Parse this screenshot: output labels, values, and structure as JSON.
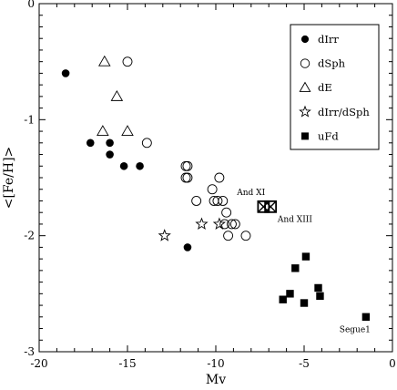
{
  "chart_data": {
    "type": "scatter",
    "xlabel": "Mv",
    "ylabel": "<[Fe/H]>",
    "xlim": [
      -20,
      0
    ],
    "ylim": [
      -3,
      0
    ],
    "xticks": [
      -20,
      -15,
      -10,
      -5,
      0
    ],
    "yticks": [
      0,
      -1,
      -2,
      -3
    ],
    "legend_position": "top-right",
    "series": [
      {
        "name": "dIrr",
        "marker": "filled-circle",
        "points": [
          [
            -18.5,
            -0.6
          ],
          [
            -17.1,
            -1.2
          ],
          [
            -16.0,
            -1.2
          ],
          [
            -16.0,
            -1.3
          ],
          [
            -15.2,
            -1.4
          ],
          [
            -14.3,
            -1.4
          ],
          [
            -11.6,
            -2.1
          ]
        ]
      },
      {
        "name": "dSph",
        "marker": "open-circle",
        "points": [
          [
            -15.0,
            -0.5
          ],
          [
            -13.9,
            -1.2
          ],
          [
            -11.7,
            -1.4
          ],
          [
            -11.6,
            -1.4
          ],
          [
            -11.7,
            -1.5
          ],
          [
            -11.6,
            -1.5
          ],
          [
            -11.1,
            -1.7
          ],
          [
            -10.2,
            -1.6
          ],
          [
            -10.1,
            -1.7
          ],
          [
            -9.9,
            -1.7
          ],
          [
            -9.8,
            -1.5
          ],
          [
            -9.6,
            -1.7
          ],
          [
            -9.4,
            -1.8
          ],
          [
            -9.5,
            -1.9
          ],
          [
            -9.3,
            -2.0
          ],
          [
            -9.1,
            -1.9
          ],
          [
            -8.9,
            -1.9
          ],
          [
            -8.3,
            -2.0
          ]
        ]
      },
      {
        "name": "dE",
        "marker": "open-triangle",
        "points": [
          [
            -16.3,
            -0.5
          ],
          [
            -15.6,
            -0.8
          ],
          [
            -16.4,
            -1.1
          ],
          [
            -15.0,
            -1.1
          ]
        ]
      },
      {
        "name": "dIrr/dSph",
        "marker": "open-star",
        "points": [
          [
            -12.9,
            -2.0
          ],
          [
            -10.8,
            -1.9
          ],
          [
            -9.8,
            -1.9
          ]
        ]
      },
      {
        "name": "uFd",
        "marker": "filled-square",
        "points": [
          [
            -6.2,
            -2.55
          ],
          [
            -5.8,
            -2.5
          ],
          [
            -5.5,
            -2.28
          ],
          [
            -5.0,
            -2.58
          ],
          [
            -4.9,
            -2.18
          ],
          [
            -4.2,
            -2.45
          ],
          [
            -4.1,
            -2.52
          ],
          [
            -1.5,
            -2.7
          ]
        ]
      },
      {
        "name": "",
        "marker": "boxed-x",
        "points": [
          [
            -7.3,
            -1.75
          ],
          [
            -6.9,
            -1.75
          ]
        ]
      }
    ],
    "annotations": [
      {
        "text": "And XI",
        "x": -8.8,
        "y": -1.65
      },
      {
        "text": "And XIII",
        "x": -6.5,
        "y": -1.88
      },
      {
        "text": "Segue1",
        "x": -3.0,
        "y": -2.83
      }
    ]
  }
}
